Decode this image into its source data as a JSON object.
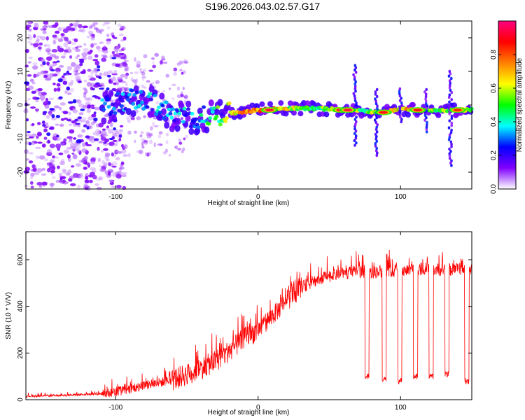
{
  "title": "S196.2026.043.02.57.G17",
  "chart_data": [
    {
      "type": "heatmap",
      "name": "spectrogram",
      "xlabel": "Height of straight line (km)",
      "ylabel": "Frequency (Hz)",
      "xlim": [
        -163,
        150
      ],
      "ylim": [
        -25,
        25
      ],
      "xticks": [
        -100,
        0,
        100
      ],
      "yticks": [
        -20,
        -10,
        0,
        10,
        20
      ],
      "colorbar": {
        "label": "Normalized spectral amplitude",
        "range": [
          0,
          1
        ],
        "ticks": [
          "0.0",
          "0.2",
          "0.4",
          "0.6",
          "0.8"
        ],
        "tick_values": [
          0.0,
          0.2,
          0.4,
          0.6,
          0.8
        ],
        "colors": [
          "#ffffff",
          "#8000ff",
          "#0000ff",
          "#00ffff",
          "#00ff00",
          "#ffff00",
          "#ff8000",
          "#ff0000",
          "#ff0080"
        ]
      },
      "ridge": [
        {
          "x": -110,
          "f": -1.0,
          "a": 0.25
        },
        {
          "x": -90,
          "f": 2.0,
          "a": 0.3
        },
        {
          "x": -75,
          "f": 1.0,
          "a": 0.3
        },
        {
          "x": -60,
          "f": -3.0,
          "a": 0.3
        },
        {
          "x": -45,
          "f": -4.0,
          "a": 0.3
        },
        {
          "x": -30,
          "f": -3.0,
          "a": 0.45
        },
        {
          "x": -20,
          "f": -2.5,
          "a": 0.6
        },
        {
          "x": -10,
          "f": -2.0,
          "a": 0.7
        },
        {
          "x": 0,
          "f": -1.5,
          "a": 0.75
        },
        {
          "x": 10,
          "f": -1.2,
          "a": 0.7
        },
        {
          "x": 20,
          "f": -1.0,
          "a": 0.6
        },
        {
          "x": 30,
          "f": -1.0,
          "a": 0.55
        },
        {
          "x": 40,
          "f": -1.0,
          "a": 0.5
        },
        {
          "x": 50,
          "f": -1.2,
          "a": 0.55
        },
        {
          "x": 60,
          "f": -1.5,
          "a": 0.9
        },
        {
          "x": 70,
          "f": -1.5,
          "a": 0.5
        },
        {
          "x": 80,
          "f": -2.0,
          "a": 0.55
        },
        {
          "x": 90,
          "f": -2.2,
          "a": 0.7
        },
        {
          "x": 100,
          "f": -1.0,
          "a": 0.6
        },
        {
          "x": 110,
          "f": -1.5,
          "a": 0.75
        },
        {
          "x": 120,
          "f": -1.5,
          "a": 0.55
        },
        {
          "x": 130,
          "f": -1.5,
          "a": 0.55
        },
        {
          "x": 140,
          "f": -1.5,
          "a": 0.55
        },
        {
          "x": 150,
          "f": -1.5,
          "a": 0.55
        }
      ],
      "hotspots": [
        {
          "x": 8,
          "f": -1.5,
          "a": 0.95
        },
        {
          "x": 58,
          "f": -1.5,
          "a": 0.95
        },
        {
          "x": 63,
          "f": -1.5,
          "a": 0.95
        },
        {
          "x": 88,
          "f": -2.2,
          "a": 0.9
        },
        {
          "x": 112,
          "f": -1.5,
          "a": 0.9
        },
        {
          "x": 140,
          "f": -1.5,
          "a": 0.85
        }
      ],
      "vertical_streaks": [
        {
          "x": 68,
          "f_min": -12,
          "f_max": 12
        },
        {
          "x": 83,
          "f_min": -15,
          "f_max": 5
        },
        {
          "x": 100,
          "f_min": -5,
          "f_max": 5
        },
        {
          "x": 118,
          "f_min": -8,
          "f_max": 5
        },
        {
          "x": 135,
          "f_min": -18,
          "f_max": 10
        }
      ]
    },
    {
      "type": "line",
      "name": "snr",
      "xlabel": "Height of straight line (km)",
      "ylabel": "SNR (10 * V/V)",
      "xlim": [
        -163,
        150
      ],
      "ylim": [
        0,
        720
      ],
      "xticks": [
        -100,
        0,
        100
      ],
      "yticks": [
        0,
        200,
        400,
        600
      ],
      "series": [
        {
          "name": "SNR",
          "color": "#ff0000",
          "trend": {
            "x": [
              -163,
              -130,
              -110,
              -95,
              -80,
              -60,
              -45,
              -30,
              -20,
              -10,
              0,
              10,
              20,
              25,
              30,
              40,
              50,
              60,
              70,
              80,
              90,
              100,
              110,
              120,
              130,
              140,
              150
            ],
            "y": [
              15,
              20,
              25,
              40,
              60,
              85,
              120,
              165,
              210,
              260,
              300,
              360,
              420,
              450,
              480,
              510,
              530,
              540,
              550,
              545,
              555,
              550,
              560,
              560,
              555,
              560,
              560
            ]
          },
          "dropouts": [
            {
              "x": [
                75,
                78
              ],
              "y": 100
            },
            {
              "x": [
                87,
                90
              ],
              "y": 90
            },
            {
              "x": [
                98,
                101
              ],
              "y": 80
            },
            {
              "x": [
                109,
                112
              ],
              "y": 100
            },
            {
              "x": [
                120,
                123
              ],
              "y": 100
            },
            {
              "x": [
                131,
                134
              ],
              "y": 110
            },
            {
              "x": [
                145,
                148
              ],
              "y": 80
            }
          ]
        }
      ]
    }
  ]
}
